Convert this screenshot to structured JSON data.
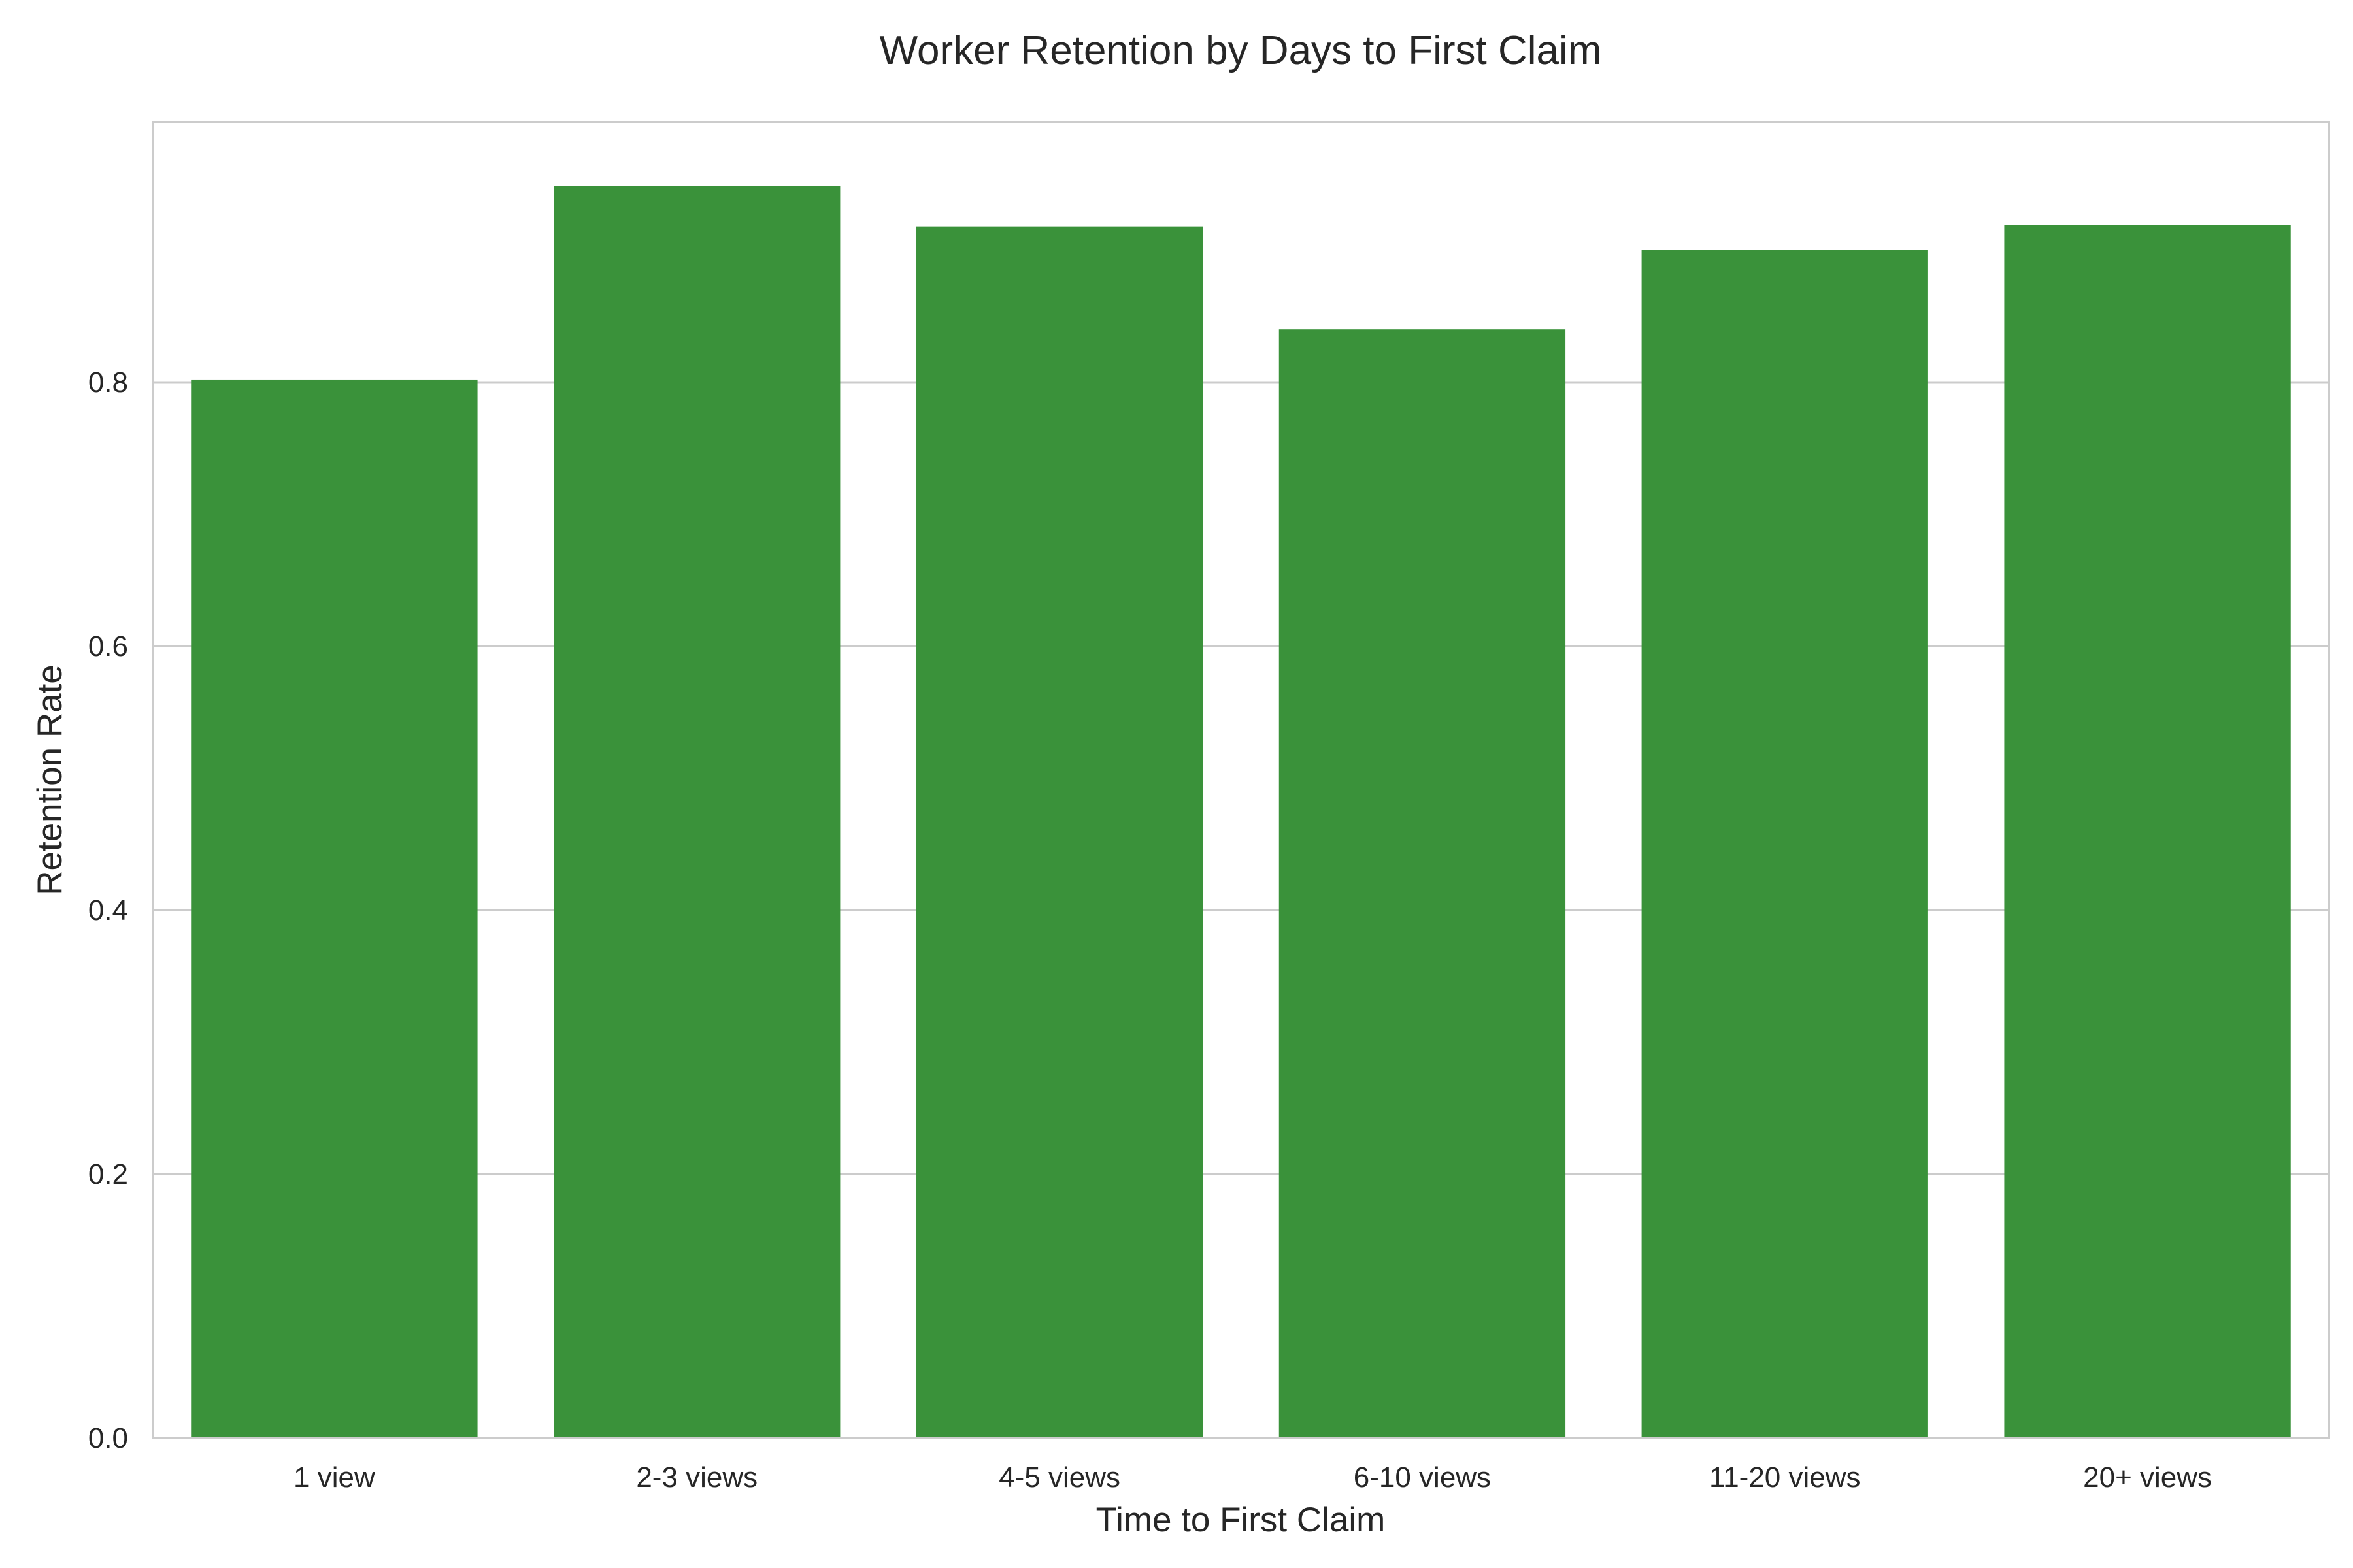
{
  "chart_data": {
    "type": "bar",
    "title": "Worker Retention by Days to First Claim",
    "xlabel": "Time to First Claim",
    "ylabel": "Retention Rate",
    "categories": [
      "1 view",
      "2-3 views",
      "4-5 views",
      "6-10 views",
      "11-20 views",
      "20+ views"
    ],
    "values": [
      0.802,
      0.949,
      0.918,
      0.84,
      0.9,
      0.919
    ],
    "ylim": [
      0,
      0.99
    ],
    "yticks": [
      0.0,
      0.2,
      0.4,
      0.6,
      0.8
    ],
    "ytick_labels": [
      "0.0",
      "0.2",
      "0.4",
      "0.6",
      "0.8"
    ],
    "bar_color": "#3a923a",
    "grid": "y-axis only",
    "legend": "none"
  }
}
